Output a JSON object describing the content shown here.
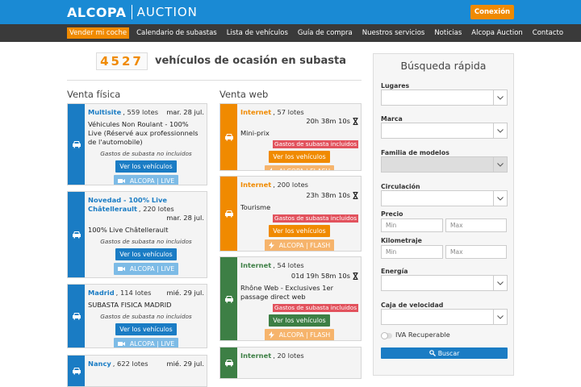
{
  "header": {
    "brand": "ALCOPA",
    "product": "AUCTION",
    "login": "Conexión"
  },
  "nav": [
    "Vender mi coche",
    "Calendario de subastas",
    "Lista de vehículos",
    "Guía de compra",
    "Nuestros servicios",
    "Noticias",
    "Alcopa Auction",
    "Contacto"
  ],
  "counter": {
    "number": "4527",
    "text": "vehículos de ocasión en subasta"
  },
  "physical": {
    "title": "Venta física",
    "cards": [
      {
        "place": "Multisite",
        "lots": ", 559 lotes",
        "date": "mar. 28 jul.",
        "desc": "Véhicules Non Roulant - 100% Live (Réservé aux professionnels de l'automobile)",
        "fees": "Gastos de subasta no incluidos",
        "button": "Ver los vehículos",
        "live": "ALCOPA | LIVE"
      },
      {
        "tag": "Novedad - 100% Live",
        "place": "Châtellerault",
        "lots": ", 220 lotes",
        "date": "mar. 28 jul.",
        "desc": "100% Live Châtellerault",
        "fees": "Gastos de subasta no incluidos",
        "button": "Ver los vehículos",
        "live": "ALCOPA | LIVE"
      },
      {
        "place": "Madrid",
        "lots": ", 114 lotes",
        "date": "mié. 29 jul.",
        "desc": "SUBASTA FISICA MADRID",
        "fees": "Gastos de subasta no incluidos",
        "button": "Ver los vehículos",
        "live": "ALCOPA | LIVE"
      },
      {
        "place": "Nancy",
        "lots": ", 622 lotes",
        "date": "mié. 29 jul."
      }
    ]
  },
  "web": {
    "title": "Venta web",
    "cards": [
      {
        "place": "Internet",
        "lots": ", 57 lotes",
        "time": "20h 38m 10s",
        "desc": "Mini-prix",
        "fees": "Gastos de subasta incluidos",
        "button": "Ver los vehículos",
        "flash": "ALCOPA | FLASH"
      },
      {
        "place": "Internet",
        "lots": ", 200 lotes",
        "time": "23h 38m 10s",
        "desc": "Tourisme",
        "fees": "Gastos de subasta incluidos",
        "button": "Ver los vehículos",
        "flash": "ALCOPA | FLASH"
      },
      {
        "place": "Internet",
        "lots": ", 54 lotes",
        "time": "01d 19h 58m 10s",
        "desc": "Rhône Web - Exclusives 1er passage direct web",
        "fees": "Gastos de subasta incluidos",
        "button": "Ver los vehículos",
        "flash": "ALCOPA | FLASH"
      },
      {
        "place": "Internet",
        "lots": ", 20 lotes"
      }
    ]
  },
  "search": {
    "title": "Búsqueda rápida",
    "fields": [
      {
        "label": "Lugares"
      },
      {
        "label": "Marca"
      },
      {
        "label": "Familia de modelos"
      },
      {
        "label": "Circulación"
      },
      {
        "label": "Precio",
        "min": "Min",
        "max": "Max"
      },
      {
        "label": "Kilometraje",
        "min": "Min",
        "max": "Max"
      },
      {
        "label": "Energía"
      },
      {
        "label": "Caja de velocidad"
      }
    ],
    "vat": "IVA Recuperable",
    "button": "Buscar"
  }
}
